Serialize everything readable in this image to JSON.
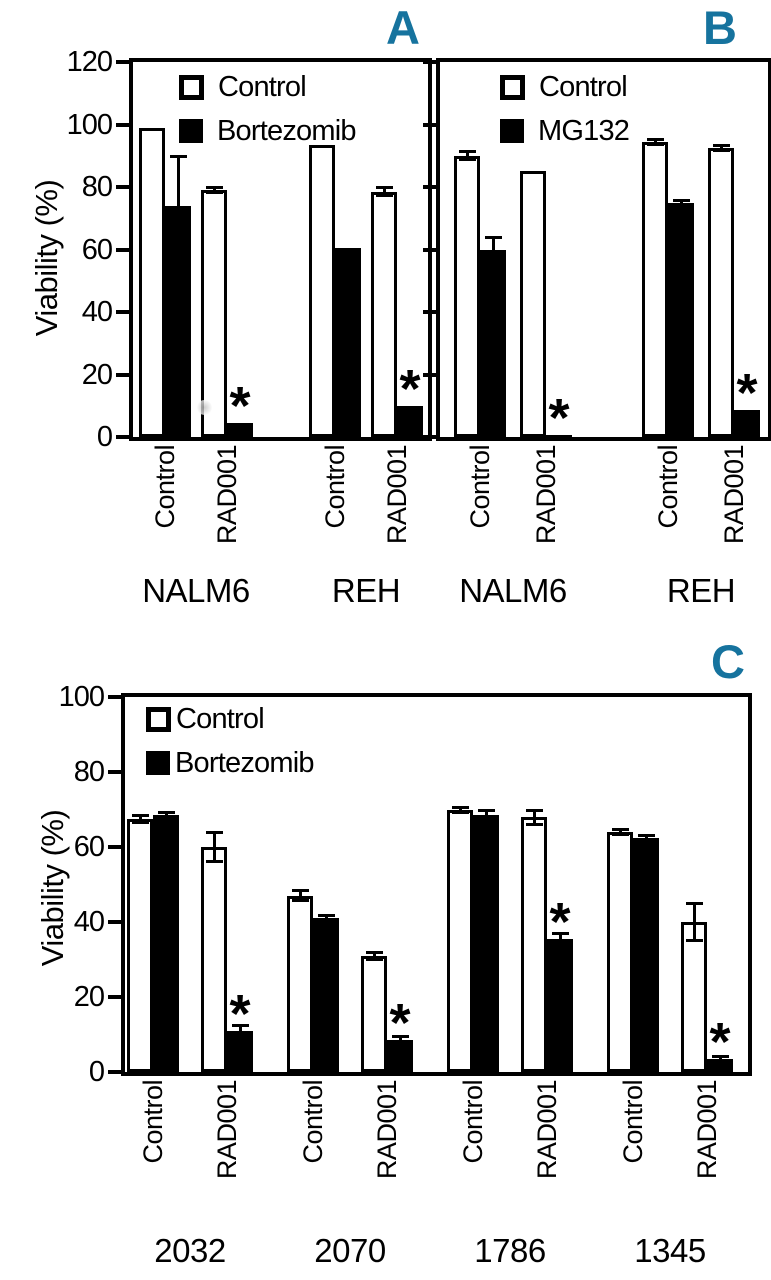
{
  "panel_letter_color": "#16739E",
  "axis_color": "#000000",
  "annotations": {
    "significance_marker": "*"
  },
  "chart_data": [
    {
      "type": "bar",
      "panel": "A",
      "ylabel": "Viability (%)",
      "ylim": [
        0,
        120
      ],
      "yticks": [
        0,
        20,
        40,
        60,
        80,
        100,
        120
      ],
      "ytick_labels_visible": true,
      "legend_position": "top-left-inside",
      "legend": [
        {
          "label": "Control",
          "fill": "#ffffff"
        },
        {
          "label": "Bortezomib",
          "fill": "#000000"
        }
      ],
      "groups": [
        {
          "name": "NALM6",
          "pairs": [
            {
              "label": "Control",
              "bars": [
                {
                  "series": "Control",
                  "value": 99,
                  "err": 0,
                  "star": false
                },
                {
                  "series": "Bortezomib",
                  "value": 74,
                  "err": 16,
                  "star": false
                }
              ]
            },
            {
              "label": "RAD001",
              "bars": [
                {
                  "series": "Control",
                  "value": 79,
                  "err": 1,
                  "star": false
                },
                {
                  "series": "Bortezomib",
                  "value": 4.5,
                  "err": 0,
                  "star": true
                }
              ]
            }
          ]
        },
        {
          "name": "REH",
          "pairs": [
            {
              "label": "Control",
              "bars": [
                {
                  "series": "Control",
                  "value": 93.5,
                  "err": 0,
                  "star": false
                },
                {
                  "series": "Bortezomib",
                  "value": 60.5,
                  "err": 0,
                  "star": false
                }
              ]
            },
            {
              "label": "RAD001",
              "bars": [
                {
                  "series": "Control",
                  "value": 78.5,
                  "err": 1.5,
                  "star": false
                },
                {
                  "series": "Bortezomib",
                  "value": 10,
                  "err": 0,
                  "star": true
                }
              ]
            }
          ]
        }
      ]
    },
    {
      "type": "bar",
      "panel": "B",
      "ylabel": "",
      "ylim": [
        0,
        120
      ],
      "yticks": [
        0,
        20,
        40,
        60,
        80,
        100,
        120
      ],
      "ytick_labels_visible": false,
      "legend_position": "top-left-inside",
      "legend": [
        {
          "label": "Control",
          "fill": "#ffffff"
        },
        {
          "label": "MG132",
          "fill": "#000000"
        }
      ],
      "groups": [
        {
          "name": "NALM6",
          "pairs": [
            {
              "label": "Control",
              "bars": [
                {
                  "series": "Control",
                  "value": 90,
                  "err": 1.5,
                  "star": false
                },
                {
                  "series": "MG132",
                  "value": 60,
                  "err": 4,
                  "star": false
                }
              ]
            },
            {
              "label": "RAD001",
              "bars": [
                {
                  "series": "Control",
                  "value": 85,
                  "err": 0,
                  "star": false
                },
                {
                  "series": "MG132",
                  "value": 0.5,
                  "err": 0,
                  "star": true
                }
              ]
            }
          ]
        },
        {
          "name": "REH",
          "pairs": [
            {
              "label": "Control",
              "bars": [
                {
                  "series": "Control",
                  "value": 94.5,
                  "err": 1,
                  "star": false
                },
                {
                  "series": "MG132",
                  "value": 75,
                  "err": 1,
                  "star": false
                }
              ]
            },
            {
              "label": "RAD001",
              "bars": [
                {
                  "series": "Control",
                  "value": 92.5,
                  "err": 1,
                  "star": false
                },
                {
                  "series": "MG132",
                  "value": 8.5,
                  "err": 0,
                  "star": true
                }
              ]
            }
          ]
        }
      ]
    },
    {
      "type": "bar",
      "panel": "C",
      "ylabel": "Viability (%)",
      "ylim": [
        0,
        100
      ],
      "yticks": [
        0,
        20,
        40,
        60,
        80,
        100
      ],
      "ytick_labels_visible": true,
      "legend_position": "top-left-inside",
      "legend": [
        {
          "label": "Control",
          "fill": "#ffffff"
        },
        {
          "label": "Bortezomib",
          "fill": "#000000"
        }
      ],
      "groups": [
        {
          "name": "2032",
          "pairs": [
            {
              "label": "Control",
              "bars": [
                {
                  "series": "Control",
                  "value": 67.5,
                  "err": 1,
                  "star": false
                },
                {
                  "series": "Bortezomib",
                  "value": 68.5,
                  "err": 0.8,
                  "star": false
                }
              ]
            },
            {
              "label": "RAD001",
              "bars": [
                {
                  "series": "Control",
                  "value": 60,
                  "err": 4,
                  "star": false
                },
                {
                  "series": "Bortezomib",
                  "value": 11,
                  "err": 1.5,
                  "star": true
                }
              ]
            }
          ]
        },
        {
          "name": "2070",
          "pairs": [
            {
              "label": "Control",
              "bars": [
                {
                  "series": "Control",
                  "value": 47,
                  "err": 1.5,
                  "star": false
                },
                {
                  "series": "Bortezomib",
                  "value": 41,
                  "err": 0.8,
                  "star": false
                }
              ]
            },
            {
              "label": "RAD001",
              "bars": [
                {
                  "series": "Control",
                  "value": 31,
                  "err": 1,
                  "star": false
                },
                {
                  "series": "Bortezomib",
                  "value": 8.5,
                  "err": 1,
                  "star": true
                }
              ]
            }
          ]
        },
        {
          "name": "1786",
          "pairs": [
            {
              "label": "Control",
              "bars": [
                {
                  "series": "Control",
                  "value": 70,
                  "err": 0.8,
                  "star": false
                },
                {
                  "series": "Bortezomib",
                  "value": 68.5,
                  "err": 1.5,
                  "star": false
                }
              ]
            },
            {
              "label": "RAD001",
              "bars": [
                {
                  "series": "Control",
                  "value": 68,
                  "err": 2,
                  "star": false
                },
                {
                  "series": "Bortezomib",
                  "value": 35.5,
                  "err": 1.5,
                  "star": true
                }
              ]
            }
          ]
        },
        {
          "name": "1345",
          "pairs": [
            {
              "label": "Control",
              "bars": [
                {
                  "series": "Control",
                  "value": 64,
                  "err": 0.8,
                  "star": false
                },
                {
                  "series": "Bortezomib",
                  "value": 62.5,
                  "err": 0.8,
                  "star": false
                }
              ]
            },
            {
              "label": "RAD001",
              "bars": [
                {
                  "series": "Control",
                  "value": 40,
                  "err": 5,
                  "star": false
                },
                {
                  "series": "Bortezomib",
                  "value": 3.5,
                  "err": 0.8,
                  "star": true
                }
              ]
            }
          ]
        }
      ]
    }
  ]
}
